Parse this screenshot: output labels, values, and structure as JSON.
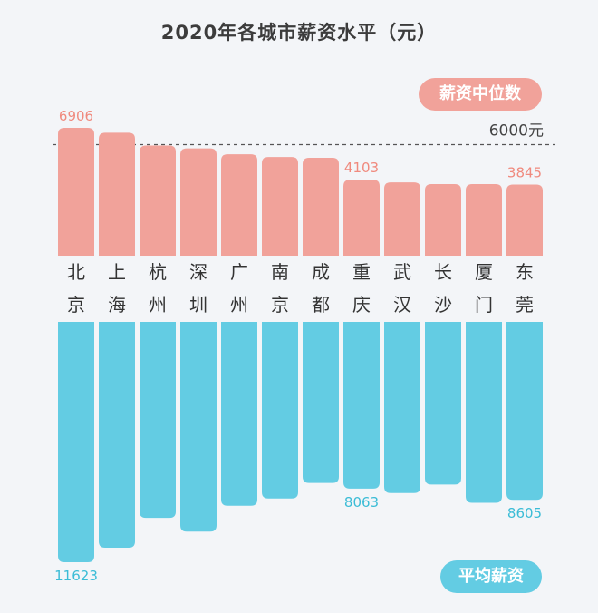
{
  "chart_data": {
    "type": "bar",
    "title": "2020年各城市薪资水平（元）",
    "categories": [
      "北京",
      "上海",
      "杭州",
      "深圳",
      "广州",
      "南京",
      "成都",
      "重庆",
      "武汉",
      "长沙",
      "厦门",
      "东莞"
    ],
    "series": [
      {
        "name": "薪资中位数",
        "values": [
          6906,
          6640,
          5950,
          5800,
          5480,
          5330,
          5290,
          4103,
          3960,
          3870,
          3870,
          3845
        ],
        "labeled": [
          0,
          7,
          11
        ],
        "color": "#f1a29a"
      },
      {
        "name": "平均薪资",
        "values": [
          11623,
          10920,
          9480,
          10140,
          8890,
          8540,
          7790,
          8063,
          8280,
          7870,
          8750,
          8605
        ],
        "labeled": [
          0,
          7,
          11
        ],
        "color": "#63cce3"
      }
    ],
    "reference_line": {
      "value": 6000,
      "label": "6000元"
    },
    "label_color_top": "#f08a7e",
    "label_color_bottom": "#3bbcd6"
  }
}
